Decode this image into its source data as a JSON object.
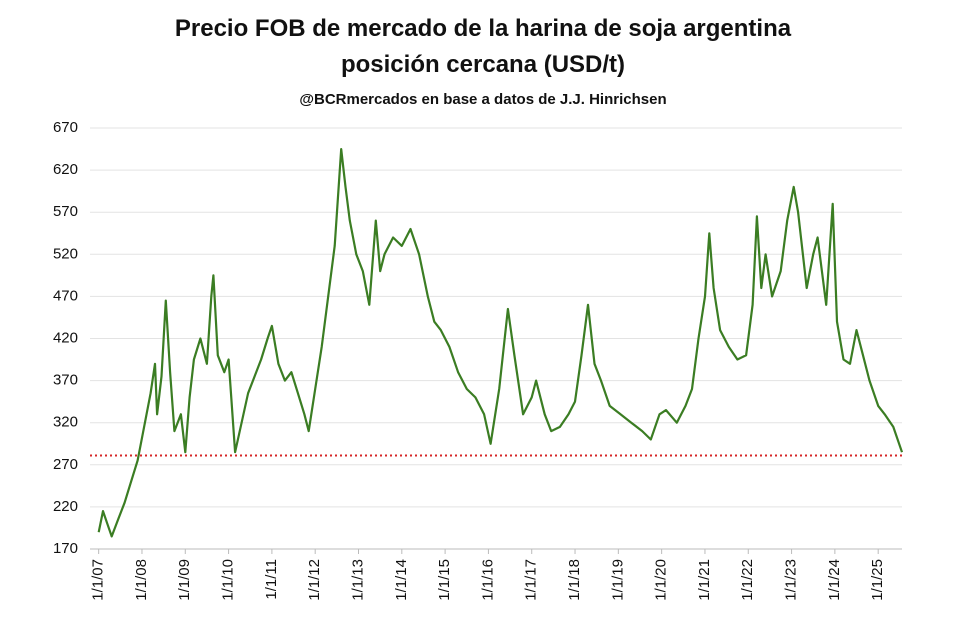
{
  "chart_data": {
    "type": "line",
    "title": [
      "Precio FOB de mercado de la harina de soja argentina",
      "posición cercana (USD/t)"
    ],
    "subtitle": "@BCRmercados en base a datos de J.J. Hinrichsen",
    "x": [
      2007.0,
      2007.1,
      2007.2,
      2007.3,
      2007.45,
      2007.6,
      2007.75,
      2007.9,
      2008.05,
      2008.2,
      2008.3,
      2008.35,
      2008.45,
      2008.55,
      2008.65,
      2008.75,
      2008.9,
      2009.0,
      2009.1,
      2009.2,
      2009.35,
      2009.5,
      2009.6,
      2009.65,
      2009.75,
      2009.9,
      2010.0,
      2010.15,
      2010.3,
      2010.45,
      2010.6,
      2010.75,
      2010.9,
      2011.0,
      2011.15,
      2011.3,
      2011.45,
      2011.6,
      2011.75,
      2011.85,
      2012.0,
      2012.15,
      2012.3,
      2012.45,
      2012.6,
      2012.7,
      2012.8,
      2012.95,
      2013.1,
      2013.25,
      2013.4,
      2013.5,
      2013.6,
      2013.8,
      2014.0,
      2014.2,
      2014.4,
      2014.6,
      2014.75,
      2014.9,
      2015.1,
      2015.3,
      2015.5,
      2015.7,
      2015.9,
      2016.05,
      2016.25,
      2016.45,
      2016.6,
      2016.8,
      2017.0,
      2017.1,
      2017.3,
      2017.45,
      2017.65,
      2017.85,
      2018.0,
      2018.15,
      2018.3,
      2018.45,
      2018.6,
      2018.8,
      2019.05,
      2019.3,
      2019.55,
      2019.75,
      2019.95,
      2020.1,
      2020.35,
      2020.55,
      2020.7,
      2020.85,
      2021.0,
      2021.1,
      2021.2,
      2021.35,
      2021.55,
      2021.75,
      2021.95,
      2022.1,
      2022.2,
      2022.3,
      2022.4,
      2022.55,
      2022.75,
      2022.9,
      2023.05,
      2023.15,
      2023.35,
      2023.5,
      2023.6,
      2023.7,
      2023.8,
      2023.95,
      2024.05,
      2024.2,
      2024.35,
      2024.5,
      2024.65,
      2024.8,
      2025.0,
      2025.15,
      2025.35,
      2025.55
    ],
    "values": [
      190,
      215,
      200,
      185,
      205,
      225,
      250,
      275,
      315,
      355,
      390,
      330,
      375,
      465,
      380,
      310,
      330,
      285,
      350,
      395,
      420,
      390,
      470,
      495,
      400,
      380,
      395,
      285,
      320,
      355,
      375,
      395,
      420,
      435,
      390,
      370,
      380,
      355,
      330,
      310,
      360,
      410,
      470,
      530,
      645,
      600,
      560,
      520,
      500,
      460,
      560,
      500,
      520,
      540,
      530,
      550,
      520,
      470,
      440,
      430,
      410,
      380,
      360,
      350,
      330,
      295,
      360,
      455,
      400,
      330,
      350,
      370,
      330,
      310,
      315,
      330,
      345,
      400,
      460,
      390,
      370,
      340,
      330,
      320,
      310,
      300,
      330,
      335,
      320,
      340,
      360,
      420,
      470,
      545,
      480,
      430,
      410,
      395,
      400,
      460,
      565,
      480,
      520,
      470,
      500,
      560,
      600,
      570,
      480,
      520,
      540,
      500,
      460,
      580,
      440,
      395,
      390,
      430,
      400,
      370,
      340,
      330,
      315,
      285
    ],
    "color": "#3b7d23",
    "reference_line": {
      "value": 281,
      "color": "#d62728"
    },
    "xlim": [
      2006.8,
      2025.55
    ],
    "xticks": [
      {
        "value": 2007,
        "label": "1/1/07"
      },
      {
        "value": 2008,
        "label": "1/1/08"
      },
      {
        "value": 2009,
        "label": "1/1/09"
      },
      {
        "value": 2010,
        "label": "1/1/10"
      },
      {
        "value": 2011,
        "label": "1/1/11"
      },
      {
        "value": 2012,
        "label": "1/1/12"
      },
      {
        "value": 2013,
        "label": "1/1/13"
      },
      {
        "value": 2014,
        "label": "1/1/14"
      },
      {
        "value": 2015,
        "label": "1/1/15"
      },
      {
        "value": 2016,
        "label": "1/1/16"
      },
      {
        "value": 2017,
        "label": "1/1/17"
      },
      {
        "value": 2018,
        "label": "1/1/18"
      },
      {
        "value": 2019,
        "label": "1/1/19"
      },
      {
        "value": 2020,
        "label": "1/1/20"
      },
      {
        "value": 2021,
        "label": "1/1/21"
      },
      {
        "value": 2022,
        "label": "1/1/22"
      },
      {
        "value": 2023,
        "label": "1/1/23"
      },
      {
        "value": 2024,
        "label": "1/1/24"
      },
      {
        "value": 2025,
        "label": "1/1/25"
      }
    ],
    "ylim": [
      170,
      670
    ],
    "yticks": [
      170,
      220,
      270,
      320,
      370,
      420,
      470,
      520,
      570,
      620,
      670
    ],
    "grid": true
  }
}
